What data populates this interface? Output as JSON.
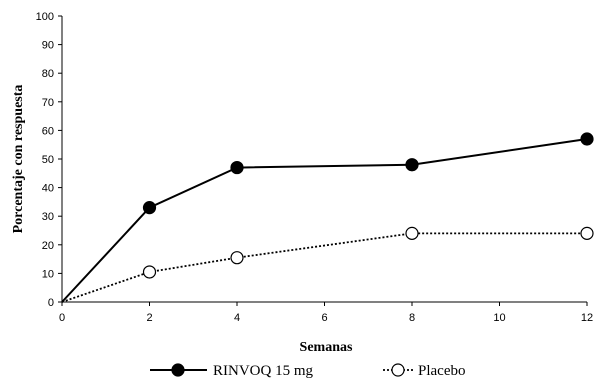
{
  "chart_data": {
    "type": "line",
    "xlabel": "Semanas",
    "ylabel": "Porcentaje con respuesta",
    "xlim": [
      0,
      12
    ],
    "ylim": [
      0,
      100
    ],
    "xticks": [
      0,
      2,
      4,
      6,
      8,
      10,
      12
    ],
    "yticks": [
      0,
      10,
      20,
      30,
      40,
      50,
      60,
      70,
      80,
      90,
      100
    ],
    "grid": false,
    "legend_position": "bottom",
    "series": [
      {
        "name": "RINVOQ 15 mg",
        "line_style": "solid",
        "marker": "filled-circle",
        "color": "#000000",
        "x": [
          0,
          2,
          4,
          8,
          12
        ],
        "y": [
          0,
          33,
          47,
          48,
          57
        ],
        "markers_at": [
          2,
          4,
          8,
          12
        ]
      },
      {
        "name": "Placebo",
        "line_style": "dotted",
        "marker": "open-circle",
        "color": "#000000",
        "x": [
          0,
          2,
          4,
          8,
          12
        ],
        "y": [
          0,
          10.5,
          15.5,
          24,
          24
        ],
        "markers_at": [
          2,
          4,
          8,
          12
        ]
      }
    ]
  }
}
